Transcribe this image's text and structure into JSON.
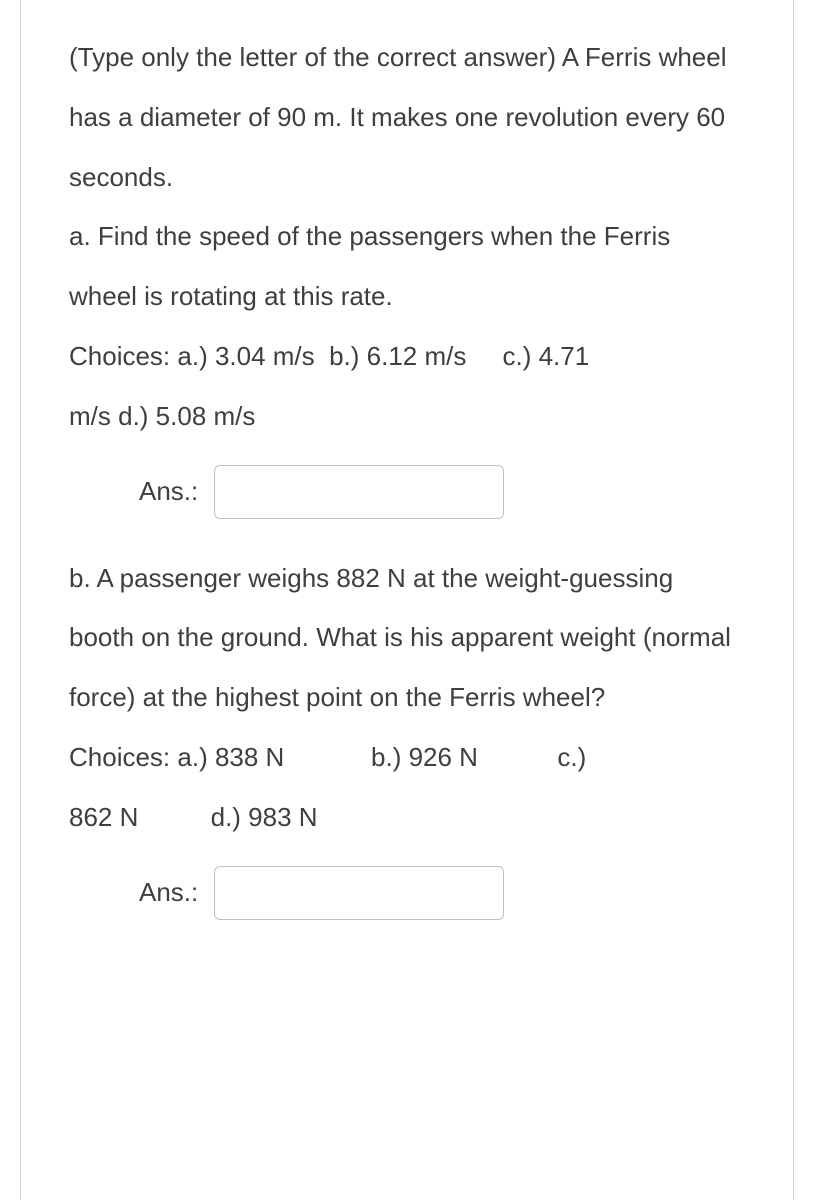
{
  "question_intro": "(Type only the letter of the correct answer) A Ferris wheel has a diameter of 90 m. It makes one revolution every 60 seconds.",
  "part_a": {
    "prompt": "a. Find the speed of the passengers when the Ferris wheel is rotating at this rate.",
    "choices_line1": "Choices: a.) 3.04 m/s  b.) 6.12 m/s     c.) 4.71",
    "choices_line2": "m/s d.) 5.08 m/s",
    "answer_label": "Ans.:",
    "answer_value": ""
  },
  "part_b": {
    "prompt": "b. A passenger weighs 882 N at the weight-guessing booth on the ground. What is his apparent weight (normal force) at the highest point on the Ferris wheel?",
    "choices_line1": "Choices: a.) 838 N            b.) 926 N           c.)",
    "choices_line2": "862 N          d.) 983 N",
    "answer_label": "Ans.:",
    "answer_value": ""
  },
  "colors": {
    "text": "#3c4043",
    "border": "#d0d0d0",
    "input_border": "#c0c0c0",
    "background": "#ffffff"
  },
  "typography": {
    "body_fontsize": 26,
    "line_height": 2.3,
    "font_family": "Arial"
  }
}
